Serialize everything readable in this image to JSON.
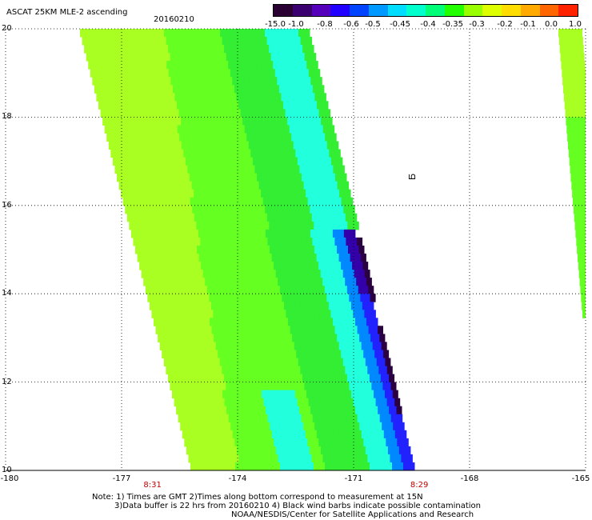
{
  "header": {
    "title": "ASCAT 25KM MLE-2 ascending",
    "date": "20160210"
  },
  "colorbar": {
    "labels": [
      "-15.0",
      "-1.0",
      "-0.8",
      "-0.6",
      "-0.5",
      "-0.45",
      "-0.4",
      "-0.35",
      "-0.3",
      "-0.2",
      "-0.1",
      "0.0",
      "1.0"
    ],
    "colors": [
      "#2a0033",
      "#3a0070",
      "#5500bb",
      "#2200ff",
      "#0044ff",
      "#0099ff",
      "#00ddff",
      "#00ffcc",
      "#00ff77",
      "#22ff00",
      "#99ff00",
      "#ddff00",
      "#ffdd00",
      "#ffaa00",
      "#ff6600",
      "#ff2200"
    ]
  },
  "map": {
    "lon_range": [
      -180,
      -165
    ],
    "lat_range": [
      10,
      20
    ],
    "lon_ticks": [
      "-180",
      "-177",
      "-174",
      "-171",
      "-168",
      "-165"
    ],
    "lat_ticks": [
      "20",
      "18",
      "16",
      "14",
      "12",
      "10"
    ],
    "time_labels": [
      {
        "text": "8:31",
        "lon": -176.2
      },
      {
        "text": "8:29",
        "lon": -169.3
      }
    ],
    "swath_colors": {
      "primary": "#aaff22",
      "mid": "#66ff22",
      "green": "#33ee33",
      "cyan": "#22ffdd",
      "blue": "#0088ff",
      "deepblue": "#2222ff",
      "violet": "#3300aa",
      "dark": "#2a0040"
    },
    "barb_symbol": "ഥ"
  },
  "footer": {
    "note1": "Note: 1) Times are GMT 2)Times along bottom correspond to measurement at 15N",
    "note2": "3)Data buffer is 22 hrs from 20160210 4) Black wind barbs indicate possible contamination",
    "note3": "NOAA/NESDIS/Center for Satellite Applications and Research"
  }
}
